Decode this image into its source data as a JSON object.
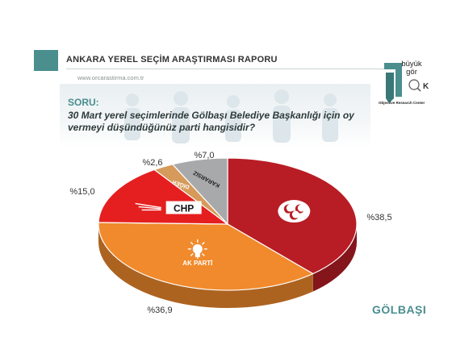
{
  "header": {
    "title": "ANKARA YEREL SEÇİM ARAŞTIRMASI RAPORU",
    "url": "www.orcarastirma.com.tr"
  },
  "logo": {
    "text_line1": "büyük",
    "text_line2": "gör",
    "caption": "Objective Research Center"
  },
  "question": {
    "label": "SORU:",
    "text": "30 Mart yerel seçimlerinde Gölbaşı Belediye Başkanlığı için oy vermeyi düşündüğünüz parti hangisidir?"
  },
  "region": "GÖLBAŞI",
  "colors": {
    "mhp": "#b81d25",
    "akp": "#f08a2c",
    "chp": "#e51f1f",
    "diger": "#d69a5a",
    "kararsiz": "#a7a9ab",
    "accent": "#4a8e8e"
  },
  "chart_data": {
    "type": "pie",
    "title": "",
    "slices": [
      {
        "label": "",
        "party": "MHP",
        "value": 38.5,
        "value_label": "%38,5",
        "color": "#b81d25"
      },
      {
        "label": "AK PARTİ",
        "party": "AK PARTİ",
        "value": 36.9,
        "value_label": "%36,9",
        "color": "#f08a2c"
      },
      {
        "label": "CHP",
        "party": "CHP",
        "value": 15.0,
        "value_label": "%15,0",
        "color": "#e51f1f"
      },
      {
        "label": "DİĞER",
        "party": "DİĞER",
        "value": 2.6,
        "value_label": "%2,6",
        "color": "#d69a5a"
      },
      {
        "label": "KARARSIZ",
        "party": "KARARSIZ",
        "value": 7.0,
        "value_label": "%7,0",
        "color": "#a7a9ab"
      }
    ]
  }
}
